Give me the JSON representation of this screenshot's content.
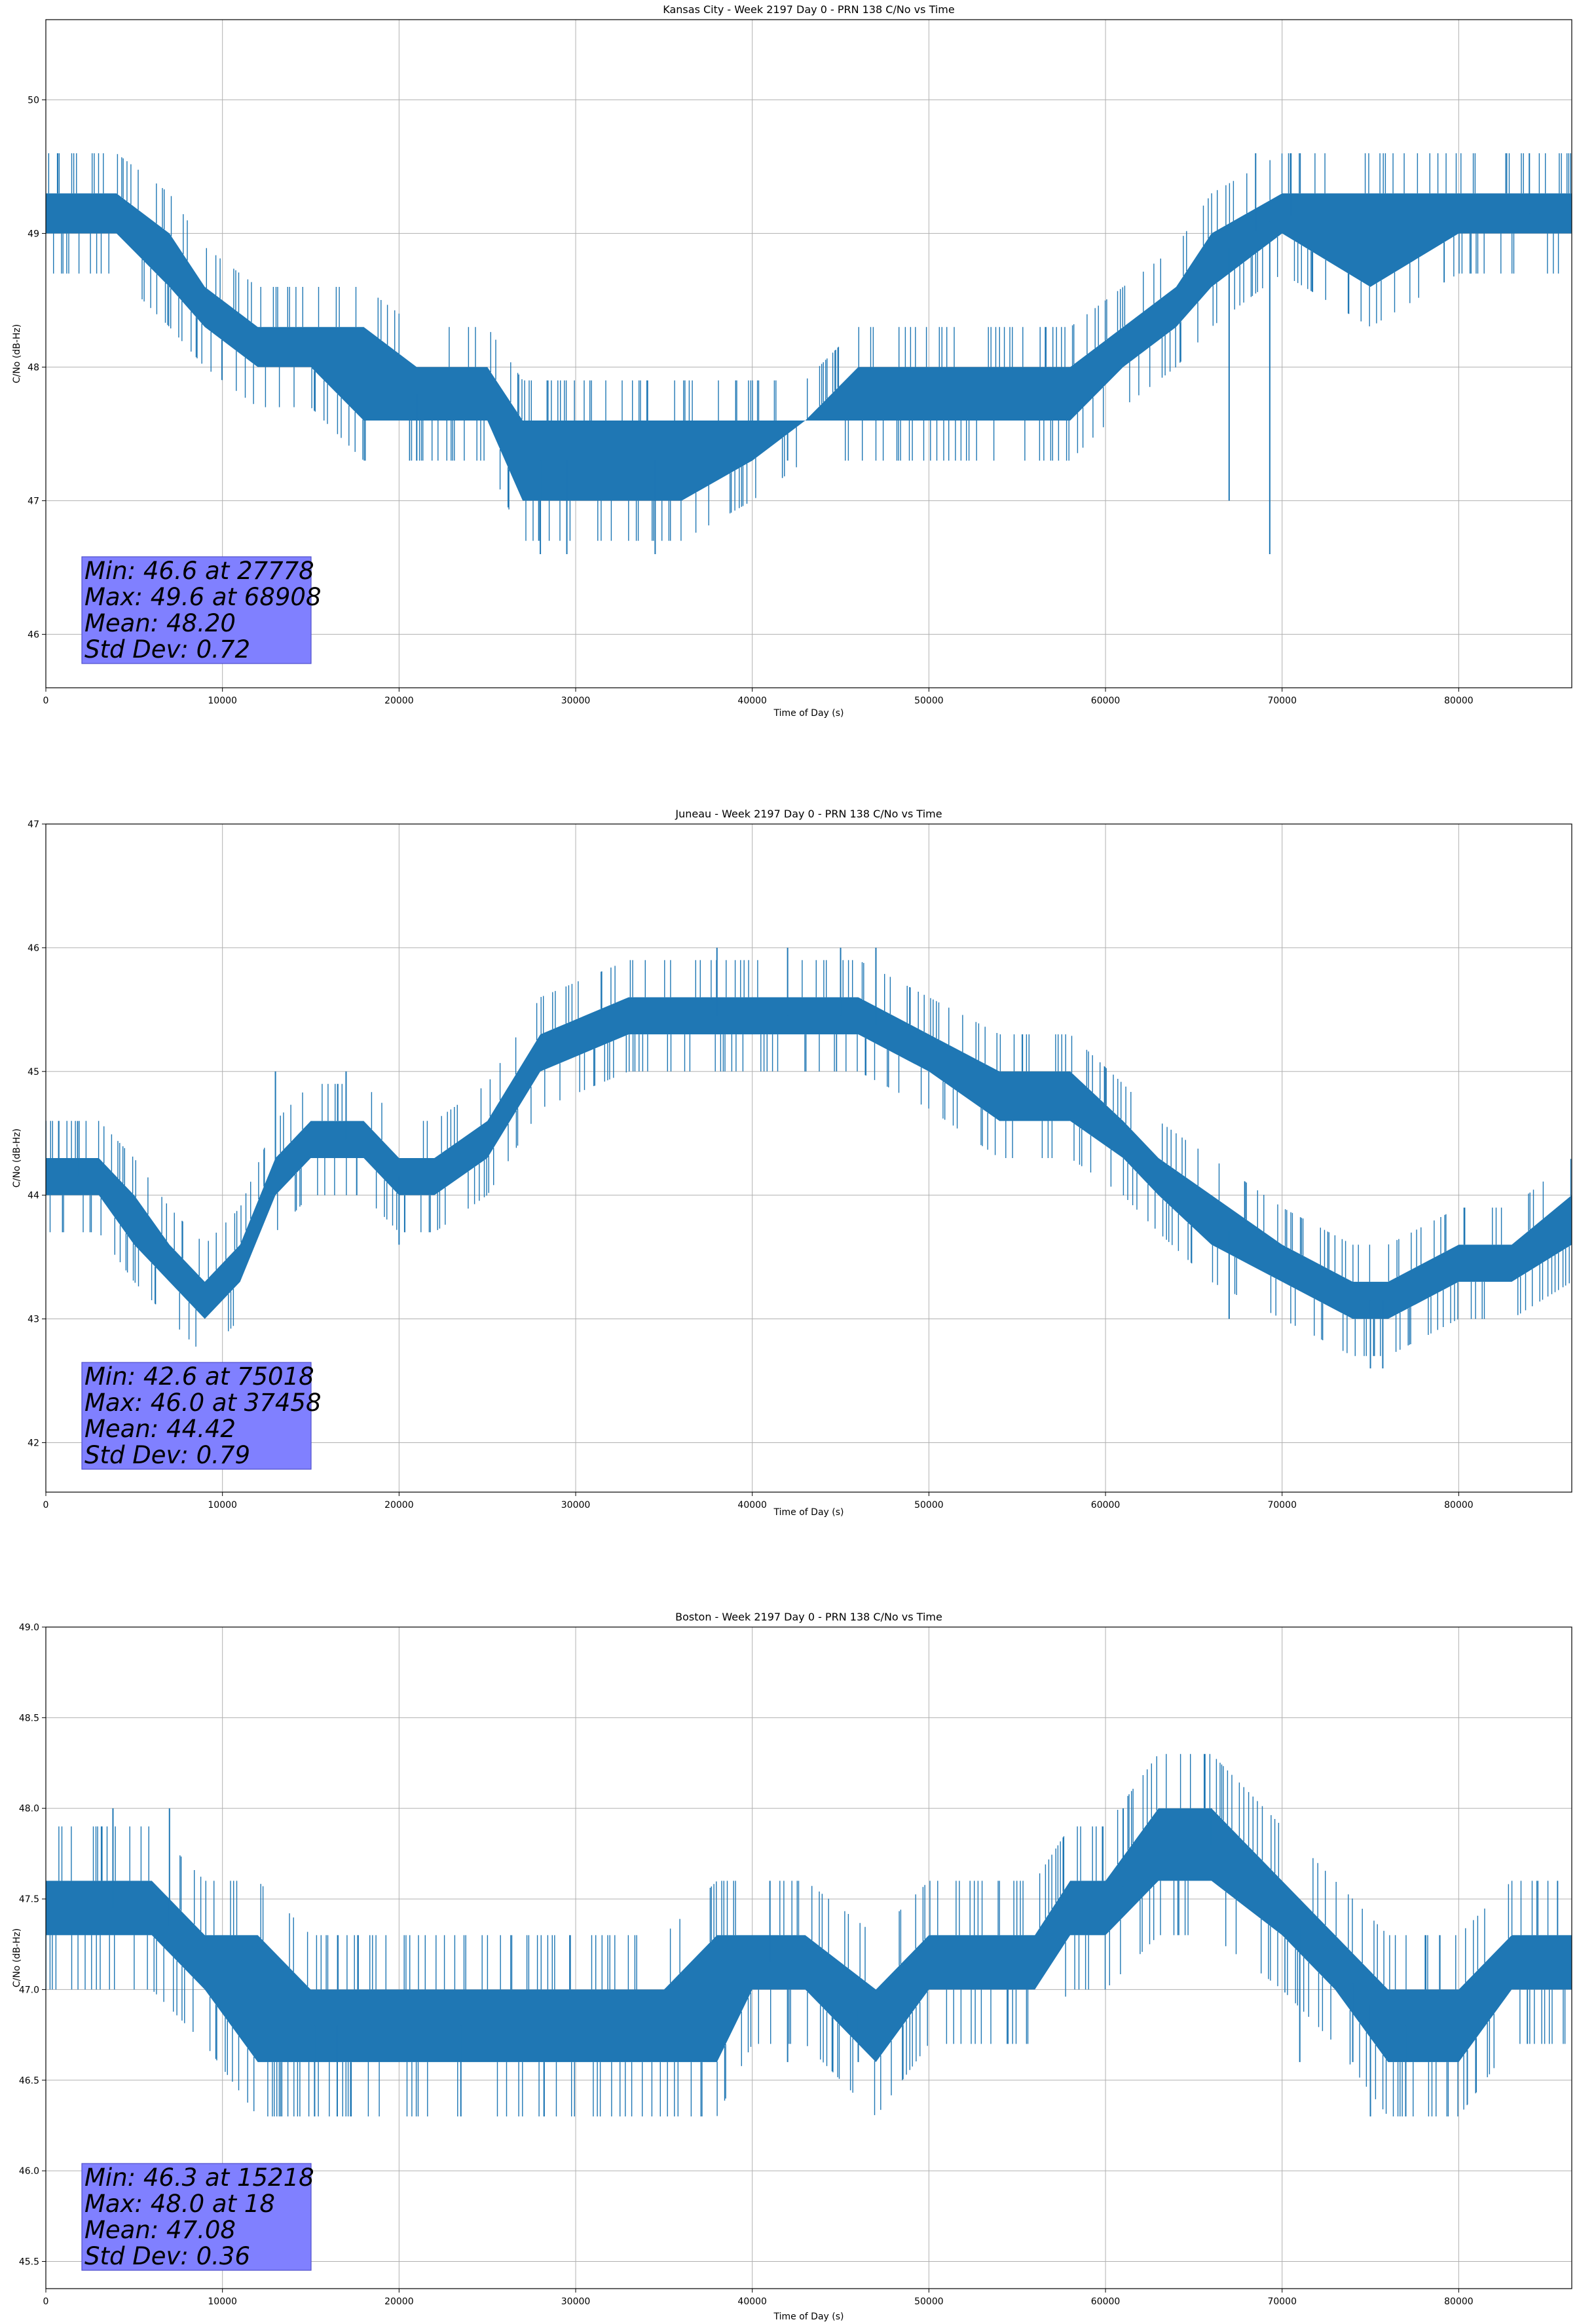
{
  "chart_data": [
    {
      "type": "line",
      "title": "Kansas City - Week 2197 Day 0 - PRN 138 C/No vs Time",
      "xlabel": "Time of Day (s)",
      "ylabel": "C/No (dB-Hz)",
      "xlim": [
        0,
        86400
      ],
      "ylim": [
        45.6,
        50.6
      ],
      "xticks": [
        0,
        10000,
        20000,
        30000,
        40000,
        50000,
        60000,
        70000,
        80000
      ],
      "yticks": [
        46,
        47,
        48,
        49,
        50
      ],
      "ytick_labels": [
        "46",
        "47",
        "48",
        "49",
        "50"
      ],
      "grid": true,
      "color": "#1f77b4",
      "series": [
        {
          "x": [
            0,
            4000,
            7000,
            9000,
            12000,
            15000,
            18000,
            21000,
            25000,
            27000,
            32000,
            36000,
            40000,
            43000,
            46000,
            50000,
            54000,
            58000,
            61000,
            64000,
            66000,
            70000,
            75000,
            80000,
            86400
          ],
          "min": [
            49.0,
            49.0,
            48.6,
            48.3,
            48.0,
            48.0,
            47.6,
            47.6,
            47.6,
            47.0,
            47.0,
            47.0,
            47.3,
            47.6,
            47.6,
            47.6,
            47.6,
            47.6,
            48.0,
            48.3,
            48.6,
            49.0,
            48.6,
            49.0,
            49.0
          ],
          "max": [
            49.3,
            49.3,
            49.0,
            48.6,
            48.3,
            48.3,
            48.3,
            48.0,
            48.0,
            47.6,
            47.6,
            47.6,
            47.6,
            47.6,
            48.0,
            48.0,
            48.0,
            48.0,
            48.3,
            48.6,
            49.0,
            49.3,
            49.3,
            49.3,
            49.3
          ],
          "spikes": [
            [
              28000,
              46.6
            ],
            [
              29500,
              46.6
            ],
            [
              34500,
              46.6
            ],
            [
              67000,
              47.0
            ],
            [
              69300,
              46.6
            ],
            [
              68500,
              49.6
            ],
            [
              70500,
              49.6
            ],
            [
              84000,
              49.6
            ],
            [
              21000,
              47.3
            ],
            [
              42000,
              47.3
            ]
          ]
        }
      ],
      "stats": {
        "min": "Min: 46.6 at 27778",
        "max": "Max: 49.6 at 68908",
        "mean": "Mean: 48.20",
        "std": "Std Dev: 0.72"
      }
    },
    {
      "type": "line",
      "title": "Juneau - Week 2197 Day 0 - PRN 138 C/No vs Time",
      "xlabel": "Time of Day (s)",
      "ylabel": "C/No (dB-Hz)",
      "xlim": [
        0,
        86400
      ],
      "ylim": [
        41.6,
        47.0
      ],
      "xticks": [
        0,
        10000,
        20000,
        30000,
        40000,
        50000,
        60000,
        70000,
        80000
      ],
      "yticks": [
        42,
        43,
        44,
        45,
        46,
        47
      ],
      "ytick_labels": [
        "42",
        "43",
        "44",
        "45",
        "46",
        "47"
      ],
      "grid": true,
      "color": "#1f77b4",
      "series": [
        {
          "x": [
            0,
            3000,
            5000,
            7000,
            9000,
            11000,
            13000,
            15000,
            18000,
            20000,
            22000,
            25000,
            28000,
            33000,
            38000,
            42000,
            46000,
            50000,
            54000,
            58000,
            61000,
            63000,
            66000,
            70000,
            74000,
            76000,
            80000,
            83000,
            86400
          ],
          "min": [
            44.0,
            44.0,
            43.6,
            43.3,
            43.0,
            43.3,
            44.0,
            44.3,
            44.3,
            44.0,
            44.0,
            44.3,
            45.0,
            45.3,
            45.3,
            45.3,
            45.3,
            45.0,
            44.6,
            44.6,
            44.3,
            44.0,
            43.6,
            43.3,
            43.0,
            43.0,
            43.3,
            43.3,
            43.6
          ],
          "max": [
            44.3,
            44.3,
            44.0,
            43.6,
            43.3,
            43.6,
            44.3,
            44.6,
            44.6,
            44.3,
            44.3,
            44.6,
            45.3,
            45.6,
            45.6,
            45.6,
            45.6,
            45.3,
            45.0,
            45.0,
            44.6,
            44.3,
            44.0,
            43.6,
            43.3,
            43.3,
            43.6,
            43.6,
            44.0
          ],
          "spikes": [
            [
              75000,
              42.6
            ],
            [
              75700,
              42.6
            ],
            [
              67000,
              43.0
            ],
            [
              20000,
              43.6
            ],
            [
              38000,
              46.0
            ],
            [
              42000,
              46.0
            ],
            [
              45000,
              46.0
            ],
            [
              47000,
              46.0
            ],
            [
              1800,
              44.6
            ],
            [
              13000,
              45.0
            ],
            [
              17000,
              45.0
            ]
          ]
        }
      ],
      "stats": {
        "min": "Min: 42.6 at 75018",
        "max": "Max: 46.0 at 37458",
        "mean": "Mean: 44.42",
        "std": "Std Dev: 0.79"
      }
    },
    {
      "type": "line",
      "title": "Boston - Week 2197 Day 0 - PRN 138 C/No vs Time",
      "xlabel": "Time of Day (s)",
      "ylabel": "C/No (dB-Hz)",
      "xlim": [
        0,
        86400
      ],
      "ylim": [
        45.35,
        49.0
      ],
      "xticks": [
        0,
        10000,
        20000,
        30000,
        40000,
        50000,
        60000,
        70000,
        80000
      ],
      "yticks": [
        45.5,
        46.0,
        46.5,
        47.0,
        47.5,
        48.0,
        48.5,
        49.0
      ],
      "ytick_labels": [
        "45.5",
        "46.0",
        "46.5",
        "47.0",
        "47.5",
        "48.0",
        "48.5",
        "49.0"
      ],
      "grid": true,
      "color": "#1f77b4",
      "series": [
        {
          "x": [
            0,
            3000,
            6000,
            9000,
            12000,
            15000,
            18000,
            21000,
            23000,
            26000,
            30000,
            35000,
            38000,
            40000,
            43000,
            47000,
            50000,
            53000,
            56000,
            58000,
            60000,
            63000,
            66000,
            70000,
            73000,
            76000,
            80000,
            83000,
            86400
          ],
          "min": [
            47.3,
            47.3,
            47.3,
            47.0,
            46.6,
            46.6,
            46.6,
            46.6,
            46.6,
            46.6,
            46.6,
            46.6,
            46.6,
            47.0,
            47.0,
            46.6,
            47.0,
            47.0,
            47.0,
            47.3,
            47.3,
            47.6,
            47.6,
            47.3,
            47.0,
            46.6,
            46.6,
            47.0,
            47.0
          ],
          "max": [
            47.6,
            47.6,
            47.6,
            47.3,
            47.3,
            47.0,
            47.0,
            47.0,
            47.0,
            47.0,
            47.0,
            47.0,
            47.3,
            47.3,
            47.3,
            47.0,
            47.3,
            47.3,
            47.3,
            47.6,
            47.6,
            48.0,
            48.0,
            47.6,
            47.3,
            47.0,
            47.0,
            47.3,
            47.3
          ],
          "spikes": [
            [
              15218,
              46.3
            ],
            [
              16500,
              46.3
            ],
            [
              23500,
              46.3
            ],
            [
              75000,
              46.3
            ],
            [
              77000,
              46.3
            ],
            [
              3800,
              48.0
            ],
            [
              7000,
              48.0
            ],
            [
              61000,
              48.0
            ],
            [
              66000,
              48.0
            ],
            [
              41000,
              47.6
            ],
            [
              42000,
              46.6
            ],
            [
              46000,
              46.6
            ],
            [
              71000,
              46.6
            ],
            [
              74000,
              46.6
            ]
          ]
        }
      ],
      "stats": {
        "min": "Min: 46.3 at 15218",
        "max": "Max: 48.0 at 18",
        "mean": "Mean: 47.08",
        "std": "Std Dev: 0.36"
      }
    }
  ]
}
